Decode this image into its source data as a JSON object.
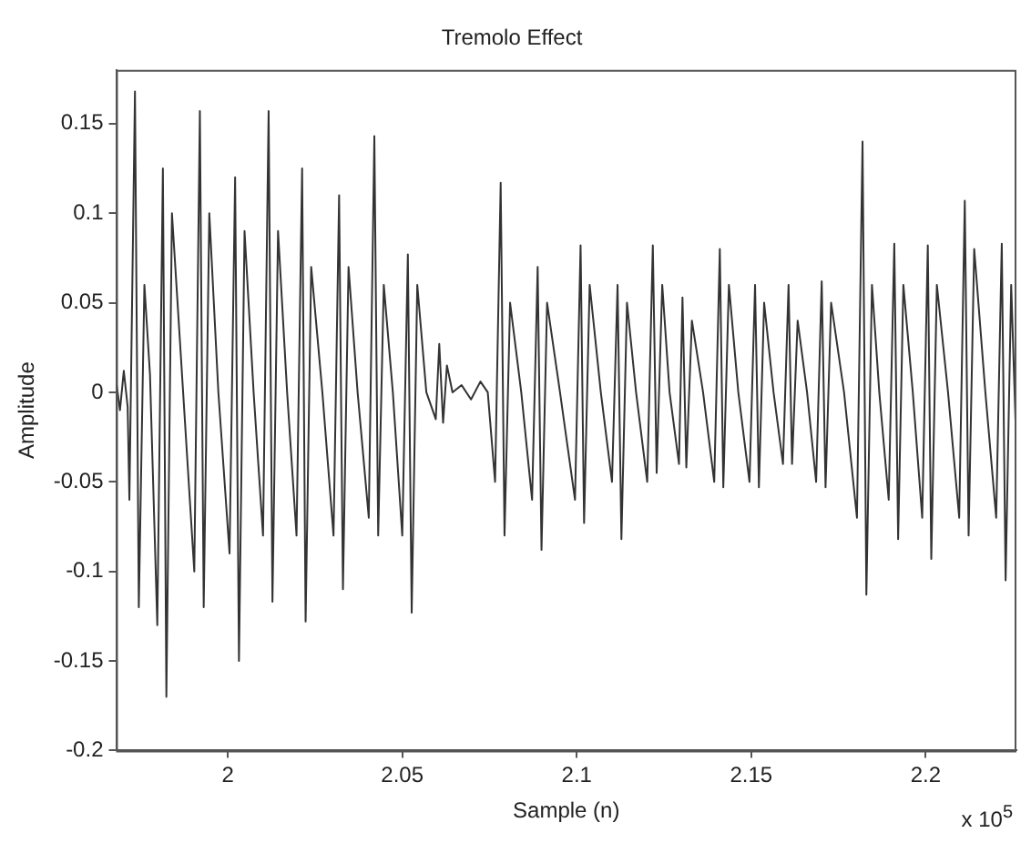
{
  "chart_data": {
    "type": "line",
    "title": "Tremolo Effect",
    "xlabel": "Sample (n)",
    "ylabel": "Amplitude",
    "annotations": [
      "x 10$^{5}$"
    ],
    "xlim": [
      1.968,
      2.226
    ],
    "xticks": [
      2,
      2.05,
      2.1,
      2.15,
      2.2
    ],
    "ylim": [
      -0.2,
      0.18
    ],
    "yticks": [
      -0.2,
      -0.15,
      -0.1,
      -0.05,
      0,
      0.05,
      0.1,
      0.15
    ],
    "grid": false,
    "legend": false,
    "marker": "none",
    "line_style": "solid",
    "series": [
      {
        "color": "#333333",
        "x": [
          1.9681,
          1.9691,
          1.9702,
          1.9713,
          1.9718,
          1.9734,
          1.9745,
          1.9761,
          1.9777,
          1.9798,
          1.9814,
          1.9824,
          1.984,
          1.9872,
          1.9904,
          1.992,
          1.9931,
          1.9947,
          1.9973,
          2.0005,
          2.0021,
          2.0032,
          2.0048,
          2.0074,
          2.0101,
          2.0117,
          2.0128,
          2.0144,
          2.017,
          2.0197,
          2.0213,
          2.0223,
          2.0239,
          2.0271,
          2.0303,
          2.0319,
          2.033,
          2.0346,
          2.0372,
          2.0404,
          2.042,
          2.0431,
          2.0447,
          2.0473,
          2.05,
          2.0516,
          2.0527,
          2.0543,
          2.0569,
          2.0596,
          2.0606,
          2.0617,
          2.0628,
          2.0644,
          2.067,
          2.0697,
          2.0724,
          2.0745,
          2.0766,
          2.0782,
          2.0793,
          2.0809,
          2.0841,
          2.0872,
          2.0888,
          2.0899,
          2.0915,
          2.0952,
          2.0995,
          2.1011,
          2.1021,
          2.1037,
          2.1069,
          2.1101,
          2.1117,
          2.1128,
          2.1144,
          2.117,
          2.1202,
          2.1218,
          2.1229,
          2.1245,
          2.1266,
          2.1293,
          2.1303,
          2.1314,
          2.133,
          2.1362,
          2.1394,
          2.141,
          2.142,
          2.1436,
          2.1463,
          2.1495,
          2.1511,
          2.1522,
          2.1537,
          2.1564,
          2.1591,
          2.1607,
          2.1617,
          2.1633,
          2.166,
          2.1686,
          2.1702,
          2.1713,
          2.1729,
          2.1766,
          2.1803,
          2.1819,
          2.183,
          2.1846,
          2.1867,
          2.1894,
          2.191,
          2.1921,
          2.1936,
          2.1963,
          2.199,
          2.2006,
          2.2016,
          2.2032,
          2.2064,
          2.2096,
          2.2112,
          2.2123,
          2.2139,
          2.2171,
          2.2202,
          2.2218,
          2.2229,
          2.2245,
          2.2258
        ],
        "values": [
          0.005,
          -0.01,
          0.012,
          -0.008,
          -0.06,
          0.168,
          -0.12,
          0.06,
          0.01,
          -0.13,
          0.125,
          -0.17,
          0.1,
          0,
          -0.1,
          0.157,
          -0.12,
          0.1,
          0,
          -0.09,
          0.12,
          -0.15,
          0.09,
          0,
          -0.08,
          0.157,
          -0.117,
          0.09,
          0,
          -0.08,
          0.125,
          -0.128,
          0.07,
          0,
          -0.08,
          0.11,
          -0.11,
          0.07,
          0,
          -0.07,
          0.143,
          -0.08,
          0.06,
          0,
          -0.08,
          0.077,
          -0.123,
          0.06,
          0,
          -0.015,
          0.027,
          -0.017,
          0.015,
          0,
          0.004,
          -0.004,
          0.006,
          0,
          -0.05,
          0.117,
          -0.08,
          0.05,
          0,
          -0.06,
          0.07,
          -0.088,
          0.05,
          0,
          -0.06,
          0.082,
          -0.073,
          0.06,
          0,
          -0.05,
          0.06,
          -0.082,
          0.05,
          0,
          -0.05,
          0.082,
          -0.045,
          0.06,
          0,
          -0.04,
          0.053,
          -0.042,
          0.04,
          0,
          -0.05,
          0.08,
          -0.053,
          0.06,
          0,
          -0.05,
          0.06,
          -0.053,
          0.05,
          0,
          -0.04,
          0.06,
          -0.04,
          0.04,
          0,
          -0.05,
          0.062,
          -0.053,
          0.05,
          0,
          -0.07,
          0.14,
          -0.113,
          0.06,
          0,
          -0.06,
          0.083,
          -0.082,
          0.06,
          0,
          -0.07,
          0.082,
          -0.093,
          0.06,
          0,
          -0.07,
          0.107,
          -0.08,
          0.08,
          0,
          -0.07,
          0.083,
          -0.105,
          0.06,
          -0.02
        ]
      }
    ]
  }
}
